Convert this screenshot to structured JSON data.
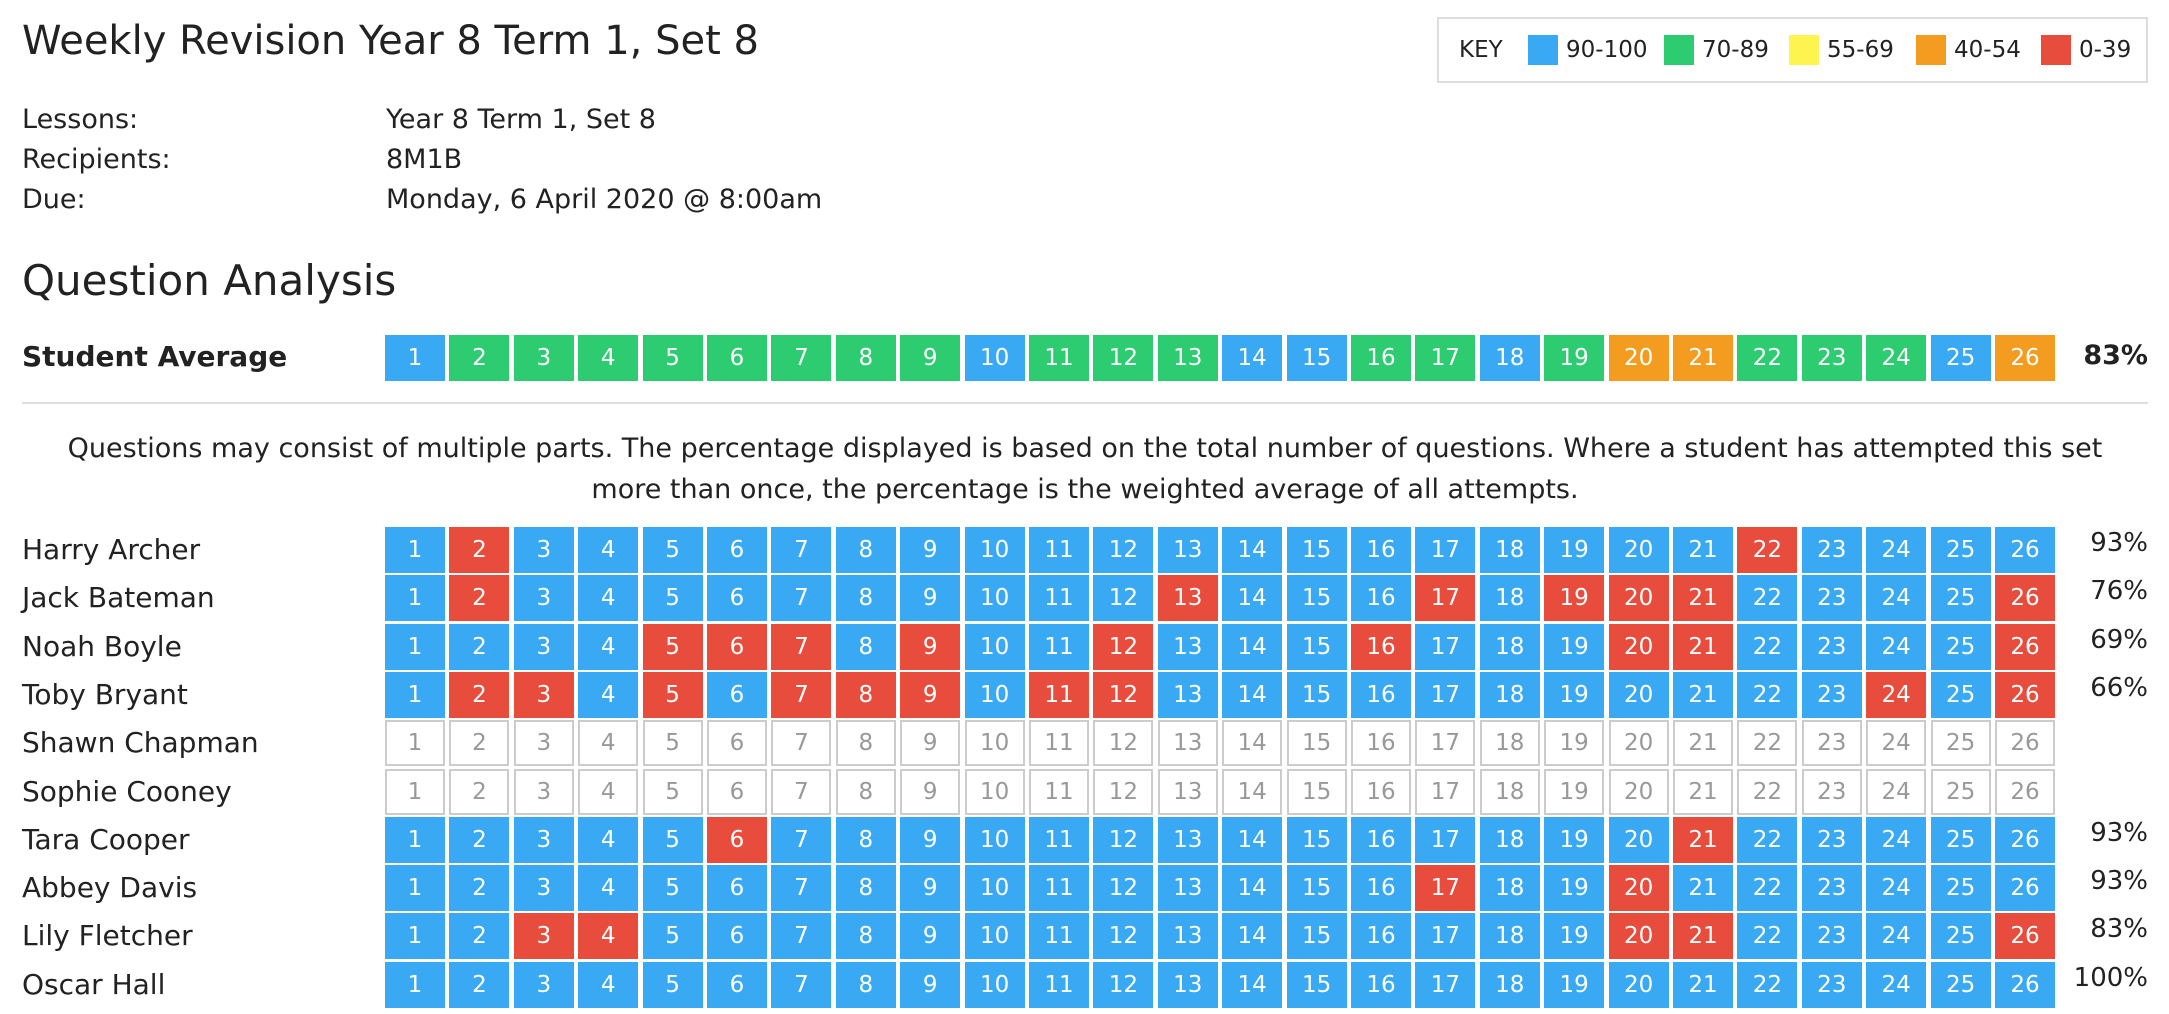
{
  "header": {
    "title": "Weekly Revision Year 8 Term 1, Set 8",
    "details": [
      {
        "label": "Lessons:",
        "value": "Year 8 Term 1, Set 8"
      },
      {
        "label": "Recipients:",
        "value": "8M1B"
      },
      {
        "label": "Due:",
        "value": "Monday, 6 April 2020 @ 8:00am"
      }
    ]
  },
  "key": {
    "title": "KEY",
    "items": [
      {
        "label": "90-100",
        "color": "#3aa9f4"
      },
      {
        "label": "70-89",
        "color": "#2ecc71"
      },
      {
        "label": "55-69",
        "color": "#fff44f"
      },
      {
        "label": "40-54",
        "color": "#f39c1f"
      },
      {
        "label": "0-39",
        "color": "#e74c3c"
      }
    ]
  },
  "section_title": "Question Analysis",
  "questions": [
    1,
    2,
    3,
    4,
    5,
    6,
    7,
    8,
    9,
    10,
    11,
    12,
    13,
    14,
    15,
    16,
    17,
    18,
    19,
    20,
    21,
    22,
    23,
    24,
    25,
    26
  ],
  "average": {
    "label": "Student Average",
    "score": "83%",
    "cells": [
      "#3aa9f4",
      "#2ecc71",
      "#2ecc71",
      "#2ecc71",
      "#2ecc71",
      "#2ecc71",
      "#2ecc71",
      "#2ecc71",
      "#2ecc71",
      "#3aa9f4",
      "#2ecc71",
      "#2ecc71",
      "#2ecc71",
      "#3aa9f4",
      "#3aa9f4",
      "#2ecc71",
      "#2ecc71",
      "#3aa9f4",
      "#2ecc71",
      "#f39c1f",
      "#f39c1f",
      "#2ecc71",
      "#2ecc71",
      "#2ecc71",
      "#3aa9f4",
      "#f39c1f"
    ]
  },
  "note": "Questions may consist of multiple parts. The percentage displayed is based on the total number of questions. Where a student has attempted this set more than once, the percentage is the weighted average of all attempts.",
  "students": [
    {
      "name": "Harry Archer",
      "score": "93%",
      "cells": [
        "#3aa9f4",
        "#e74c3c",
        "#3aa9f4",
        "#3aa9f4",
        "#3aa9f4",
        "#3aa9f4",
        "#3aa9f4",
        "#3aa9f4",
        "#3aa9f4",
        "#3aa9f4",
        "#3aa9f4",
        "#3aa9f4",
        "#3aa9f4",
        "#3aa9f4",
        "#3aa9f4",
        "#3aa9f4",
        "#3aa9f4",
        "#3aa9f4",
        "#3aa9f4",
        "#3aa9f4",
        "#3aa9f4",
        "#e74c3c",
        "#3aa9f4",
        "#3aa9f4",
        "#3aa9f4",
        "#3aa9f4"
      ]
    },
    {
      "name": "Jack Bateman",
      "score": "76%",
      "cells": [
        "#3aa9f4",
        "#e74c3c",
        "#3aa9f4",
        "#3aa9f4",
        "#3aa9f4",
        "#3aa9f4",
        "#3aa9f4",
        "#3aa9f4",
        "#3aa9f4",
        "#3aa9f4",
        "#3aa9f4",
        "#3aa9f4",
        "#e74c3c",
        "#3aa9f4",
        "#3aa9f4",
        "#3aa9f4",
        "#e74c3c",
        "#3aa9f4",
        "#e74c3c",
        "#e74c3c",
        "#e74c3c",
        "#3aa9f4",
        "#3aa9f4",
        "#3aa9f4",
        "#3aa9f4",
        "#e74c3c"
      ]
    },
    {
      "name": "Noah Boyle",
      "score": "69%",
      "cells": [
        "#3aa9f4",
        "#3aa9f4",
        "#3aa9f4",
        "#3aa9f4",
        "#e74c3c",
        "#e74c3c",
        "#e74c3c",
        "#3aa9f4",
        "#e74c3c",
        "#3aa9f4",
        "#3aa9f4",
        "#e74c3c",
        "#3aa9f4",
        "#3aa9f4",
        "#3aa9f4",
        "#e74c3c",
        "#3aa9f4",
        "#3aa9f4",
        "#3aa9f4",
        "#e74c3c",
        "#e74c3c",
        "#3aa9f4",
        "#3aa9f4",
        "#3aa9f4",
        "#3aa9f4",
        "#e74c3c"
      ]
    },
    {
      "name": "Toby Bryant",
      "score": "66%",
      "cells": [
        "#3aa9f4",
        "#e74c3c",
        "#e74c3c",
        "#3aa9f4",
        "#e74c3c",
        "#3aa9f4",
        "#e74c3c",
        "#e74c3c",
        "#e74c3c",
        "#3aa9f4",
        "#e74c3c",
        "#e74c3c",
        "#3aa9f4",
        "#3aa9f4",
        "#3aa9f4",
        "#3aa9f4",
        "#3aa9f4",
        "#3aa9f4",
        "#3aa9f4",
        "#3aa9f4",
        "#3aa9f4",
        "#3aa9f4",
        "#3aa9f4",
        "#e74c3c",
        "#3aa9f4",
        "#e74c3c"
      ]
    },
    {
      "name": "Shawn Chapman",
      "cells": [
        null,
        null,
        null,
        null,
        null,
        null,
        null,
        null,
        null,
        null,
        null,
        null,
        null,
        null,
        null,
        null,
        null,
        null,
        null,
        null,
        null,
        null,
        null,
        null,
        null,
        null
      ]
    },
    {
      "name": "Sophie Cooney",
      "cells": [
        null,
        null,
        null,
        null,
        null,
        null,
        null,
        null,
        null,
        null,
        null,
        null,
        null,
        null,
        null,
        null,
        null,
        null,
        null,
        null,
        null,
        null,
        null,
        null,
        null,
        null
      ]
    },
    {
      "name": "Tara Cooper",
      "score": "93%",
      "cells": [
        "#3aa9f4",
        "#3aa9f4",
        "#3aa9f4",
        "#3aa9f4",
        "#3aa9f4",
        "#e74c3c",
        "#3aa9f4",
        "#3aa9f4",
        "#3aa9f4",
        "#3aa9f4",
        "#3aa9f4",
        "#3aa9f4",
        "#3aa9f4",
        "#3aa9f4",
        "#3aa9f4",
        "#3aa9f4",
        "#3aa9f4",
        "#3aa9f4",
        "#3aa9f4",
        "#3aa9f4",
        "#e74c3c",
        "#3aa9f4",
        "#3aa9f4",
        "#3aa9f4",
        "#3aa9f4",
        "#3aa9f4"
      ]
    },
    {
      "name": "Abbey Davis",
      "score": "93%",
      "cells": [
        "#3aa9f4",
        "#3aa9f4",
        "#3aa9f4",
        "#3aa9f4",
        "#3aa9f4",
        "#3aa9f4",
        "#3aa9f4",
        "#3aa9f4",
        "#3aa9f4",
        "#3aa9f4",
        "#3aa9f4",
        "#3aa9f4",
        "#3aa9f4",
        "#3aa9f4",
        "#3aa9f4",
        "#3aa9f4",
        "#e74c3c",
        "#3aa9f4",
        "#3aa9f4",
        "#e74c3c",
        "#3aa9f4",
        "#3aa9f4",
        "#3aa9f4",
        "#3aa9f4",
        "#3aa9f4",
        "#3aa9f4"
      ]
    },
    {
      "name": "Lily Fletcher",
      "score": "83%",
      "cells": [
        "#3aa9f4",
        "#3aa9f4",
        "#e74c3c",
        "#e74c3c",
        "#3aa9f4",
        "#3aa9f4",
        "#3aa9f4",
        "#3aa9f4",
        "#3aa9f4",
        "#3aa9f4",
        "#3aa9f4",
        "#3aa9f4",
        "#3aa9f4",
        "#3aa9f4",
        "#3aa9f4",
        "#3aa9f4",
        "#3aa9f4",
        "#3aa9f4",
        "#3aa9f4",
        "#e74c3c",
        "#e74c3c",
        "#3aa9f4",
        "#3aa9f4",
        "#3aa9f4",
        "#3aa9f4",
        "#e74c3c"
      ]
    },
    {
      "name": "Oscar Hall",
      "score": "100%",
      "cells": [
        "#3aa9f4",
        "#3aa9f4",
        "#3aa9f4",
        "#3aa9f4",
        "#3aa9f4",
        "#3aa9f4",
        "#3aa9f4",
        "#3aa9f4",
        "#3aa9f4",
        "#3aa9f4",
        "#3aa9f4",
        "#3aa9f4",
        "#3aa9f4",
        "#3aa9f4",
        "#3aa9f4",
        "#3aa9f4",
        "#3aa9f4",
        "#3aa9f4",
        "#3aa9f4",
        "#3aa9f4",
        "#3aa9f4",
        "#3aa9f4",
        "#3aa9f4",
        "#3aa9f4",
        "#3aa9f4",
        "#3aa9f4"
      ]
    }
  ]
}
